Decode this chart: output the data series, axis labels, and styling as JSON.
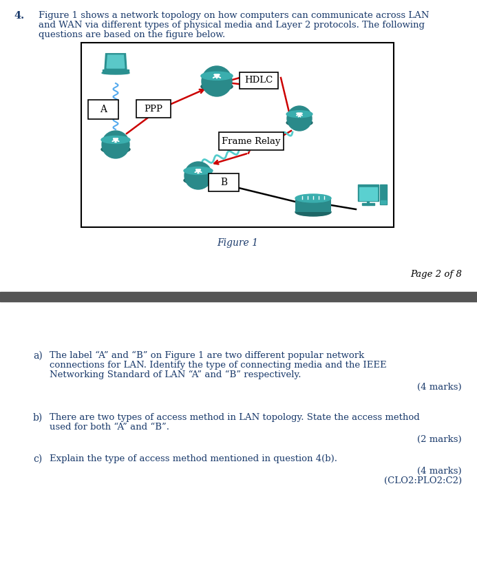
{
  "bg_color": "#ffffff",
  "text_color": "#1a3a6b",
  "q_num": "4.",
  "intro_line1": "Figure 1 shows a network topology on how computers can communicate across LAN",
  "intro_line2": "and WAN via different types of physical media and Layer 2 protocols. The following",
  "intro_line3": "questions are based on the figure below.",
  "figure_caption": "Figure 1",
  "page_text": "Page 2 of 8",
  "divider_color": "#555555",
  "ppp_label": "PPP",
  "hdlc_label": "HDLC",
  "frame_relay_label": "Frame Relay",
  "a_label": "A",
  "b_label": "B",
  "router_color": "#2a8a8a",
  "laptop_color": "#2a9090",
  "switch_color": "#2a8a8a",
  "desktop_color": "#2a9090",
  "coil_color": "#55aaee",
  "red_line_color": "#cc0000",
  "wavy_color": "#55cccc",
  "sq_a_label": "a)",
  "sq_a_text1": "The label “A” and “B” on Figure 1 are two different popular network",
  "sq_a_text2": "connections for LAN. Identify the type of connecting media and the IEEE",
  "sq_a_text3": "Networking Standard of LAN “A” and “B” respectively.",
  "sq_a_marks": "(4 marks)",
  "sq_b_label": "b)",
  "sq_b_text1": "There are two types of access method in LAN topology. State the access method",
  "sq_b_text2": "used for both “A” and “B”.",
  "sq_b_marks": "(2 marks)",
  "sq_c_label": "c)",
  "sq_c_text1": "Explain the type of access method mentioned in question 4(b).",
  "sq_c_marks1": "(4 marks)",
  "sq_c_marks2": "(CLO2:PLO2:C2)"
}
